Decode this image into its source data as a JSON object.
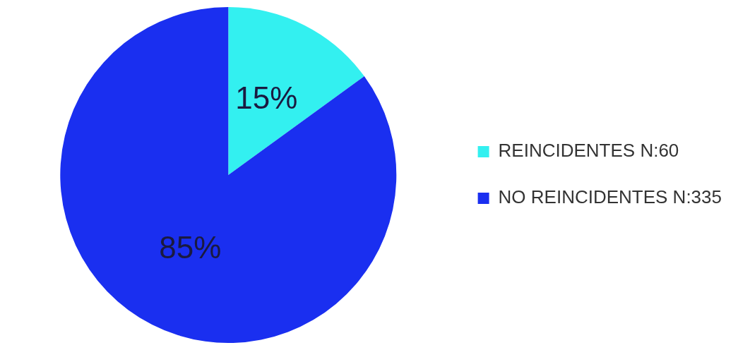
{
  "chart_data": {
    "type": "pie",
    "categories": [
      "REINCIDENTES N:60",
      "NO REINCIDENTES N:335"
    ],
    "values": [
      15,
      85
    ],
    "colors": [
      "#33f0f0",
      "#1a2ff0"
    ],
    "value_labels": [
      "15%",
      "85%"
    ],
    "legend": "right"
  }
}
